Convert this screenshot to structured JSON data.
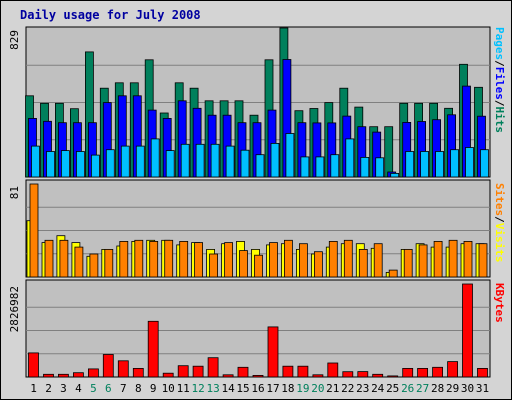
{
  "chart_data": {
    "type": "bar",
    "title": "Daily usage for July 2008",
    "categories": [
      "1",
      "2",
      "3",
      "4",
      "5",
      "6",
      "7",
      "8",
      "9",
      "10",
      "11",
      "12",
      "13",
      "14",
      "15",
      "16",
      "17",
      "18",
      "19",
      "20",
      "21",
      "22",
      "23",
      "24",
      "25",
      "26",
      "27",
      "28",
      "29",
      "30",
      "31"
    ],
    "weekend_days": [
      "5",
      "6",
      "12",
      "13",
      "19",
      "20",
      "26",
      "27"
    ],
    "panels": [
      {
        "name": "pages-files-hits",
        "y_max_label": "829",
        "ylim": [
          0,
          829
        ],
        "labels": [
          "Pages",
          "Files",
          "Hits"
        ],
        "series": [
          {
            "name": "Hits",
            "color": "#00805c",
            "values": [
              452,
              410,
              410,
              380,
              696,
              494,
              524,
              524,
              652,
              356,
              524,
              494,
              424,
              424,
              424,
              344,
              652,
              829,
              369,
              381,
              414,
              494,
              389,
              280,
              280,
              410,
              410,
              410,
              382,
              627,
              499
            ]
          },
          {
            "name": "Files",
            "color": "#0000ff",
            "values": [
              326,
              310,
              302,
              302,
              302,
              414,
              452,
              452,
              372,
              326,
              424,
              382,
              344,
              344,
              302,
              302,
              372,
              654,
              302,
              301,
              301,
              339,
              280,
              250,
              28,
              304,
              309,
              319,
              346,
              506,
              338
            ]
          },
          {
            "name": "Pages",
            "color": "#00c0ff",
            "values": [
              172,
              142,
              147,
              142,
              122,
              152,
              172,
              172,
              212,
              147,
              182,
              182,
              182,
              172,
              149,
              124,
              187,
              242,
              112,
              112,
              124,
              212,
              109,
              107,
              20,
              142,
              142,
              142,
              152,
              164,
              152
            ]
          }
        ]
      },
      {
        "name": "sites-visits",
        "y_max_label": "81",
        "ylim": [
          0,
          81
        ],
        "labels": [
          "Sites",
          "Visits"
        ],
        "series": [
          {
            "name": "Visits",
            "color": "#ffff00",
            "values": [
              49,
              30,
              36,
              30,
              18,
              24,
              27,
              31,
              32,
              32,
              28,
              30,
              24,
              29,
              31,
              24,
              28,
              29,
              24,
              20,
              26,
              29,
              29,
              25,
              4,
              24,
              29,
              26,
              26,
              29,
              29
            ]
          },
          {
            "name": "Sites",
            "color": "#ff8000",
            "values": [
              81,
              32,
              32,
              26,
              20,
              24,
              31,
              32,
              31,
              32,
              31,
              30,
              20,
              30,
              23,
              19,
              30,
              32,
              29,
              22,
              31,
              32,
              24,
              29,
              6,
              24,
              28,
              31,
              32,
              31,
              29
            ]
          }
        ]
      },
      {
        "name": "kbytes",
        "y_max_label": "2826982",
        "ylim": [
          0,
          2826982
        ],
        "labels": [
          "KBytes"
        ],
        "series": [
          {
            "name": "KBytes",
            "color": "#ff0000",
            "values": [
              733450,
              82125,
              82125,
              131400,
              246375,
              684175,
              492750,
              262800,
              1691775,
              114975,
              344925,
              328500,
              587175,
              65700,
              295650,
              49275,
              1522425,
              328500,
              328500,
              65700,
              426775,
              159675,
              164250,
              82125,
              32850,
              261050,
              262800,
              295650,
              467475,
              2826982,
              262800
            ]
          }
        ]
      }
    ],
    "legend_colors": {
      "Pages": "#00c0ff",
      "Files": "#0000ff",
      "Hits": "#00805c",
      "Sites": "#ff8000",
      "Visits": "#ffff00",
      "KBytes": "#ff0000",
      "slash": "#000000"
    },
    "colors": {
      "title": "#0000a0",
      "weekend_label": "#00805c",
      "weekday_label": "#000000",
      "panel_bg": "#c0c0c0",
      "outer_bg": "#d4d4d4"
    }
  }
}
